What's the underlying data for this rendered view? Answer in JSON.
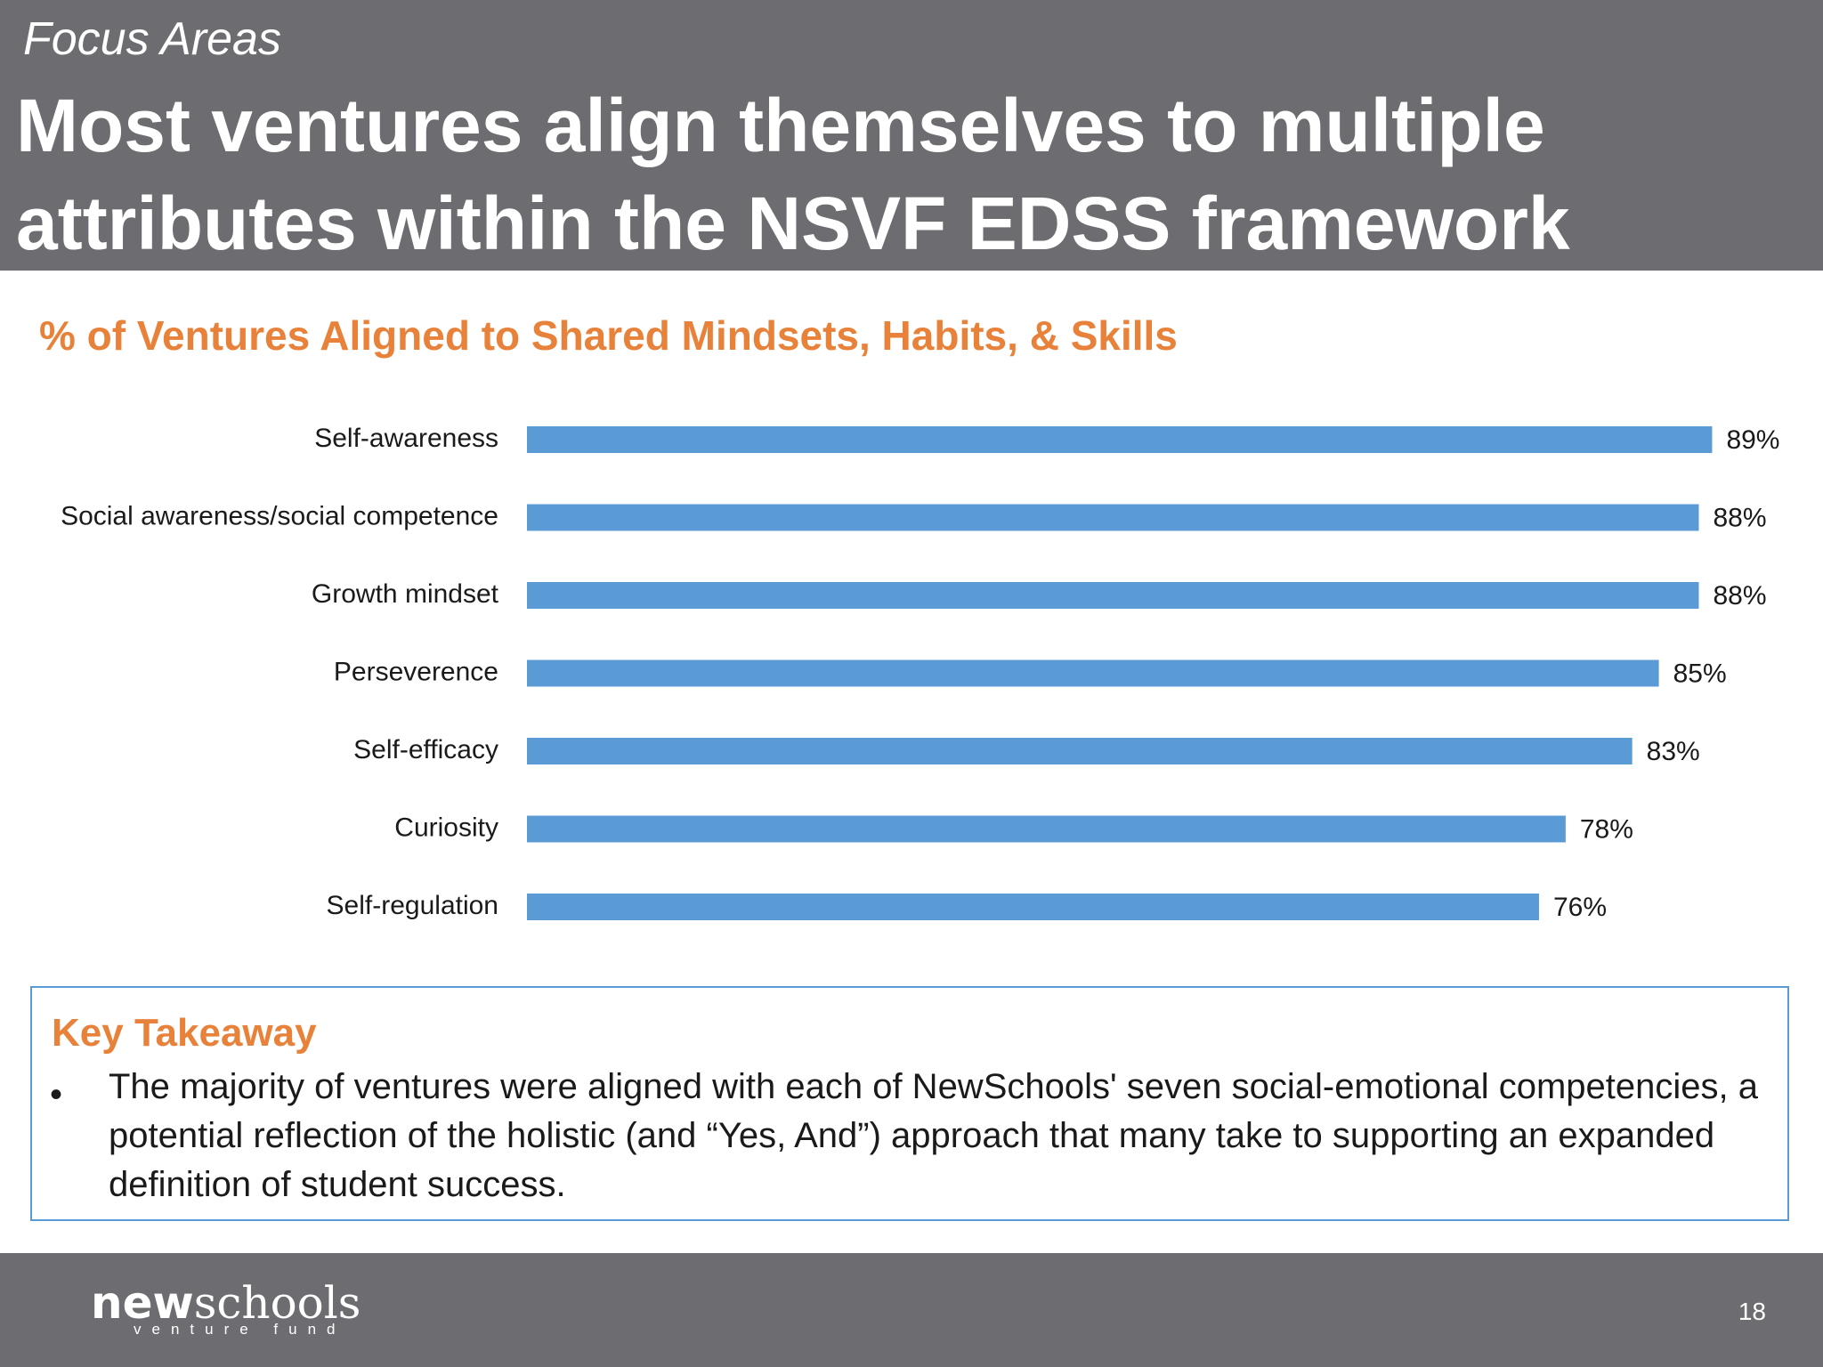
{
  "header": {
    "section_label": "Focus Areas",
    "title": "Most ventures align themselves to multiple attributes within the NSVF EDSS framework",
    "background_color": "#6d6d71"
  },
  "chart_data": {
    "type": "bar",
    "orientation": "horizontal",
    "title": "% of Ventures Aligned to Shared Mindsets, Habits, & Skills",
    "categories": [
      "Self-awareness",
      "Social awareness/social competence",
      "Growth mindset",
      "Perseverence",
      "Self-efficacy",
      "Curiosity",
      "Self-regulation"
    ],
    "values": [
      89,
      88,
      88,
      85,
      83,
      78,
      76
    ],
    "data_labels": [
      "89%",
      "88%",
      "88%",
      "85%",
      "83%",
      "78%",
      "76%"
    ],
    "bar_color": "#5b9bd5",
    "title_color": "#e8823a",
    "grid": false,
    "legend": "none"
  },
  "takeaway": {
    "title": "Key Takeaway",
    "bullet": "•",
    "text": "The majority of ventures were aligned with each of NewSchools' seven social-emotional competencies, a potential  reflection of the holistic (and “Yes, And”) approach that many take to supporting an expanded definition of student success.",
    "border_color": "#5b9bd5"
  },
  "footer": {
    "logo_bold": "new",
    "logo_light": "schools",
    "logo_sub": "venture fund",
    "page_number": "18"
  }
}
